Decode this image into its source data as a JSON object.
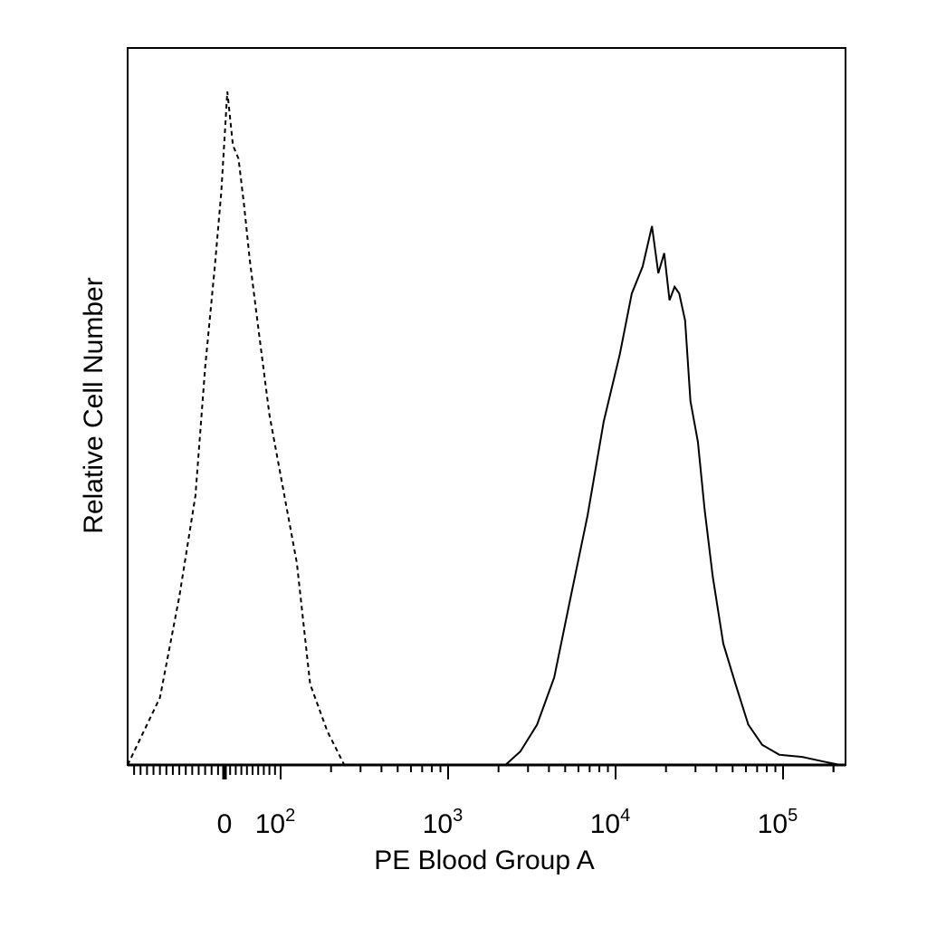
{
  "chart_data": {
    "type": "line",
    "title": "",
    "xlabel": "PE Blood Group A",
    "ylabel": "Relative Cell Number",
    "x_scale": "biexponential",
    "xlim": [
      -150,
      230000
    ],
    "ylim": [
      0,
      100
    ],
    "grid": false,
    "legend": "none",
    "x_tick_labels": [
      {
        "value": 0,
        "text": "0"
      },
      {
        "value": 100,
        "base": "10",
        "exp": "2"
      },
      {
        "value": 1000,
        "base": "10",
        "exp": "3"
      },
      {
        "value": 10000,
        "base": "10",
        "exp": "4"
      },
      {
        "value": 100000,
        "base": "10",
        "exp": "5"
      }
    ],
    "series": [
      {
        "style": "dashed",
        "color": "#000000",
        "x": [
          -150,
          -100,
          -70,
          -45,
          -30,
          -15,
          -5,
          0,
          5,
          15,
          25,
          35,
          45,
          60,
          80,
          100,
          125,
          150,
          190,
          240
        ],
        "y": [
          0,
          10,
          25,
          40,
          59,
          74,
          85,
          93,
          100,
          92,
          90,
          83,
          75,
          65,
          52,
          43,
          30,
          12,
          5,
          0
        ]
      },
      {
        "style": "solid",
        "color": "#000000",
        "x": [
          2200,
          2700,
          3400,
          4300,
          5400,
          6800,
          8500,
          10600,
          12500,
          14500,
          16500,
          18000,
          19500,
          21000,
          22500,
          24000,
          26000,
          28000,
          31000,
          34000,
          38000,
          44000,
          52000,
          62000,
          75000,
          95000,
          130000,
          175000,
          220000
        ],
        "y": [
          0,
          2,
          6,
          13,
          25,
          37,
          51,
          61,
          70,
          74,
          80,
          73,
          76,
          69,
          71,
          70,
          66,
          54,
          48,
          38,
          28,
          18,
          12,
          6,
          3,
          1.5,
          1.2,
          0.5,
          0
        ]
      }
    ]
  }
}
